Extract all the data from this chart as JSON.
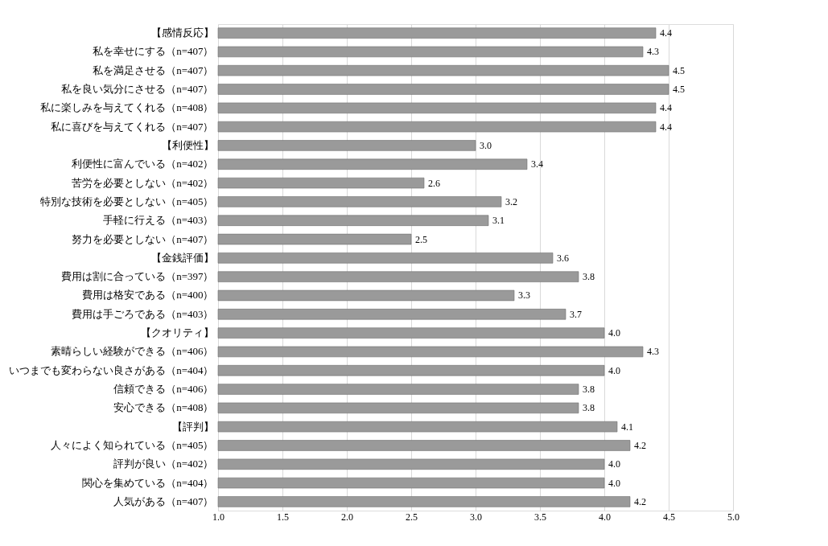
{
  "chart_data": {
    "type": "bar",
    "orientation": "horizontal",
    "color": "#9a9a9a",
    "grid": "x",
    "categories": [
      "【感情反応】",
      "私を幸せにする（n=407）",
      "私を満足させる（n=407）",
      "私を良い気分にさせる（n=407）",
      "私に楽しみを与えてくれる（n=408）",
      "私に喜びを与えてくれる（n=407）",
      "【利便性】",
      "利便性に富んでいる（n=402）",
      "苦労を必要としない（n=402）",
      "特別な技術を必要としない（n=405）",
      "手軽に行える（n=403）",
      "努力を必要としない（n=407）",
      "【金銭評価】",
      "費用は割に合っている（n=397）",
      "費用は格安である（n=400）",
      "費用は手ごろである（n=403）",
      "【クオリティ】",
      "素晴らしい経験ができる（n=406）",
      "いつまでも変わらない良さがある（n=404）",
      "信頼できる（n=406）",
      "安心できる（n=408）",
      "【評判】",
      "人々によく知られている（n=405）",
      "評判が良い（n=402）",
      "関心を集めている（n=404）",
      "人気がある（n=407）"
    ],
    "values": [
      4.4,
      4.3,
      4.5,
      4.5,
      4.4,
      4.4,
      3.0,
      3.4,
      2.6,
      3.2,
      3.1,
      2.5,
      3.6,
      3.8,
      3.3,
      3.7,
      4.0,
      4.3,
      4.0,
      3.8,
      3.8,
      4.1,
      4.2,
      4.0,
      4.0,
      4.2
    ],
    "value_labels": [
      "4.4",
      "4.3",
      "4.5",
      "4.5",
      "4.4",
      "4.4",
      "3.0",
      "3.4",
      "2.6",
      "3.2",
      "3.1",
      "2.5",
      "3.6",
      "3.8",
      "3.3",
      "3.7",
      "4.0",
      "4.3",
      "4.0",
      "3.8",
      "3.8",
      "4.1",
      "4.2",
      "4.0",
      "4.0",
      "4.2"
    ],
    "xlim": [
      1,
      5
    ],
    "xticks": [
      {
        "value": 1,
        "label": "1.0"
      },
      {
        "value": 1.5,
        "label": "1.5"
      },
      {
        "value": 2,
        "label": "2.0"
      },
      {
        "value": 2.5,
        "label": "2.5"
      },
      {
        "value": 3,
        "label": "3.0"
      },
      {
        "value": 3.5,
        "label": "3.5"
      },
      {
        "value": 4,
        "label": "4.0"
      },
      {
        "value": 4.5,
        "label": "4.5"
      },
      {
        "value": 5,
        "label": "5.0"
      }
    ]
  }
}
